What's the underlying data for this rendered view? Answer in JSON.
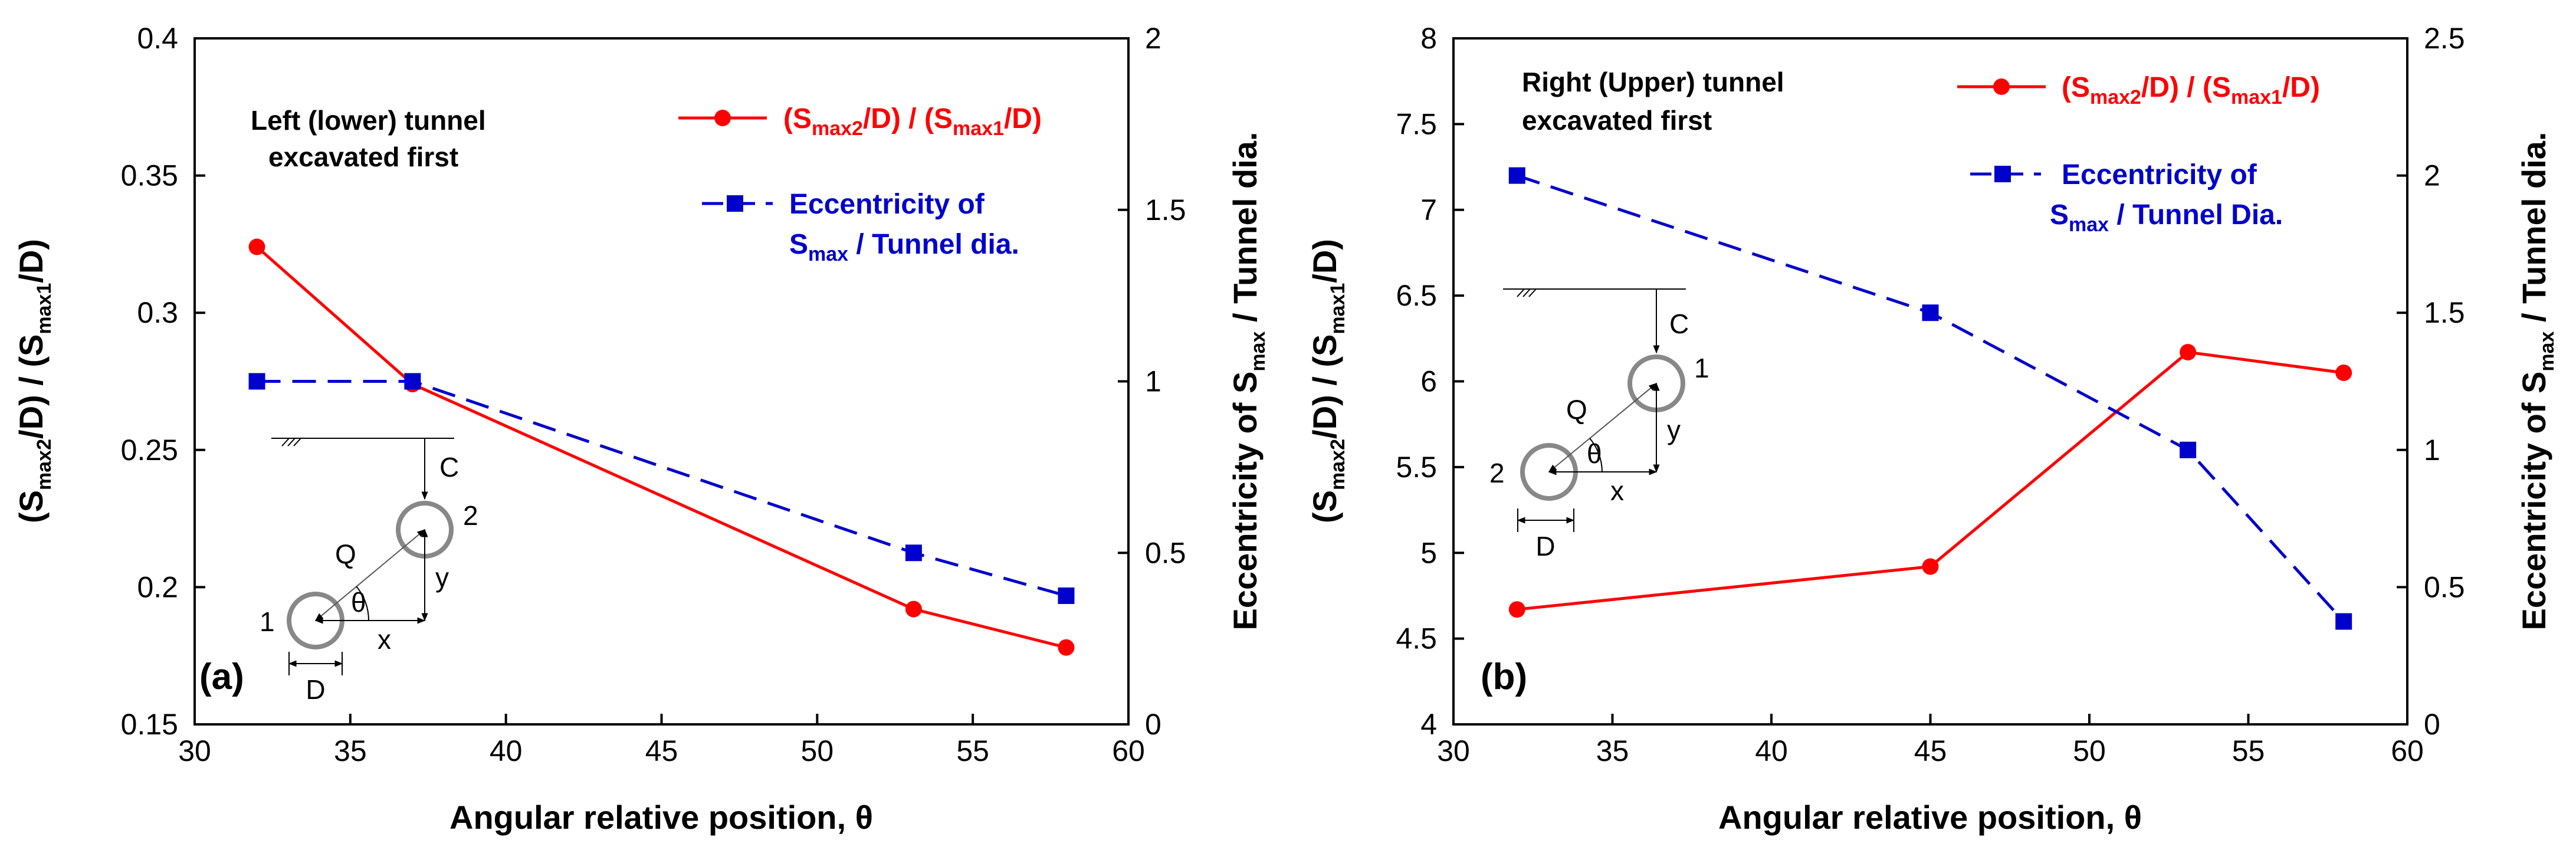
{
  "chart_data": [
    {
      "type": "line",
      "panel_label": "(a)",
      "annotation": [
        "Left (lower) tunnel",
        "excavated first"
      ],
      "xlabel": "Angular relative position, θ",
      "xlim": [
        30,
        60
      ],
      "xticks": [
        30,
        35,
        40,
        45,
        50,
        55,
        60
      ],
      "ylabel_left": {
        "pre": "(S",
        "s1": "max2",
        "mid": "/D) / (S",
        "s2": "max1",
        "post": "/D)"
      },
      "ylim_left": [
        0.15,
        0.4
      ],
      "yticks_left": [
        "0.15",
        "0.2",
        "0.25",
        "0.3",
        "0.35",
        "0.4"
      ],
      "ylabel_right": {
        "pre": "Eccentricity of S",
        "s1": "max",
        "post": " / Tunnel dia."
      },
      "ylim_right": [
        0,
        2
      ],
      "yticks_right": [
        "0",
        "0.5",
        "1",
        "1.5",
        "2"
      ],
      "series": [
        {
          "name": "(Smax2/D) / (Smax1/D)",
          "axis": "left",
          "color": "#ff0000",
          "marker": "circle",
          "dash": "solid",
          "x": [
            32,
            37,
            53.1,
            58
          ],
          "y": [
            0.324,
            0.274,
            0.192,
            0.178
          ]
        },
        {
          "name": "Eccentricity of Smax / Tunnel dia.",
          "axis": "right",
          "color": "#0000cc",
          "marker": "square",
          "dash": "dashed",
          "x": [
            32,
            37,
            53.1,
            58
          ],
          "y": [
            1.0,
            1.0,
            0.5,
            0.375
          ]
        }
      ],
      "legend": {
        "position": "top-right",
        "red": {
          "pre": "(S",
          "s1": "max2",
          "mid": "/D) / (S",
          "s2": "max1",
          "post": "/D)"
        },
        "blue_line1": "Eccentricity of",
        "blue_line2": {
          "pre": "S",
          "s1": "max",
          "post": " / Tunnel dia."
        }
      },
      "schematic": {
        "c": "C",
        "q": "Q",
        "theta": "θ",
        "x": "x",
        "y": "y",
        "d": "D",
        "lower_num": "1",
        "upper_num": "2"
      }
    },
    {
      "type": "line",
      "panel_label": "(b)",
      "annotation": [
        "Right (Upper) tunnel",
        "excavated first"
      ],
      "xlabel": "Angular relative position, θ",
      "xlim": [
        30,
        60
      ],
      "xticks": [
        30,
        35,
        40,
        45,
        50,
        55,
        60
      ],
      "ylabel_left": {
        "pre": "(S",
        "s1": "max2",
        "mid": "/D) / (S",
        "s2": "max1",
        "post": "/D)"
      },
      "ylim_left": [
        4,
        8
      ],
      "yticks_left": [
        "4",
        "4.5",
        "5",
        "5.5",
        "6",
        "6.5",
        "7",
        "7.5",
        "8"
      ],
      "ylabel_right": {
        "pre": "Eccentricity of S",
        "s1": "max",
        "post": " / Tunnel dia."
      },
      "ylim_right": [
        0,
        2.5
      ],
      "yticks_right": [
        "0",
        "0.5",
        "1",
        "1.5",
        "2",
        "2.5"
      ],
      "series": [
        {
          "name": "(Smax2/D) / (Smax1/D)",
          "axis": "left",
          "color": "#ff0000",
          "marker": "circle",
          "dash": "solid",
          "x": [
            32,
            45,
            53.1,
            58
          ],
          "y": [
            4.67,
            4.92,
            6.17,
            6.05
          ]
        },
        {
          "name": "Eccentricity of Smax / Tunnel Dia.",
          "axis": "right",
          "color": "#0000cc",
          "marker": "square",
          "dash": "dashed",
          "x": [
            32,
            45,
            53.1,
            58
          ],
          "y": [
            2.0,
            1.5,
            1.0,
            0.375
          ]
        }
      ],
      "legend": {
        "position": "top-right",
        "red": {
          "pre": "(S",
          "s1": "max2",
          "mid": "/D) / (S",
          "s2": "max1",
          "post": "/D)"
        },
        "blue_line1": "Eccentricity of",
        "blue_line2": {
          "pre": "S",
          "s1": "max",
          "post": " / Tunnel Dia."
        }
      },
      "schematic": {
        "c": "C",
        "q": "Q",
        "theta": "θ",
        "x": "x",
        "y": "y",
        "d": "D",
        "lower_num": "2",
        "upper_num": "1"
      }
    }
  ]
}
